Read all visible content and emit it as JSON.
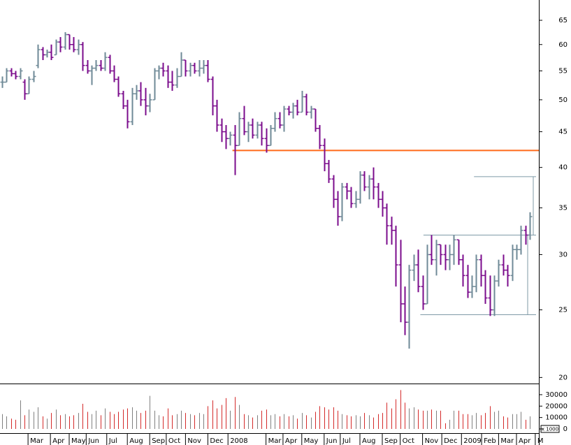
{
  "chart_data": {
    "type": "ohlc",
    "yscale": "log",
    "ylim": [
      19.65,
      69.5
    ],
    "yticks": [
      20,
      25,
      30,
      35,
      40,
      45,
      50,
      55,
      60,
      65
    ],
    "up_color": "#6f8a97",
    "down_color": "#7b0c8c",
    "ohlc": [
      [
        53,
        54,
        52,
        53
      ],
      [
        53,
        55.5,
        53,
        55
      ],
      [
        55,
        55.5,
        54,
        54.5
      ],
      [
        54.5,
        55,
        53.5,
        54
      ],
      [
        54,
        55.5,
        53.5,
        55
      ],
      [
        53,
        53.5,
        50,
        51
      ],
      [
        51,
        54,
        51,
        53.5
      ],
      [
        53.5,
        55,
        53,
        54
      ],
      [
        56,
        60,
        55.5,
        59
      ],
      [
        59,
        59.5,
        57,
        58
      ],
      [
        58,
        59,
        57.5,
        58.5
      ],
      [
        58.5,
        60,
        57,
        57.5
      ],
      [
        58,
        61,
        58,
        60.5
      ],
      [
        60.5,
        61.5,
        58.5,
        59.5
      ],
      [
        59.5,
        62.5,
        59,
        62
      ],
      [
        62,
        62,
        59,
        60
      ],
      [
        60,
        61.5,
        58.5,
        59
      ],
      [
        59,
        61,
        58,
        60
      ],
      [
        60,
        60.5,
        55,
        56
      ],
      [
        56,
        57,
        54.5,
        55
      ],
      [
        55,
        56,
        52.5,
        55.5
      ],
      [
        55.5,
        57,
        55,
        56
      ],
      [
        56,
        57,
        55,
        55.5
      ],
      [
        55.5,
        58.5,
        55,
        57.5
      ],
      [
        57.5,
        58,
        54.5,
        55
      ],
      [
        55,
        56,
        53,
        53.5
      ],
      [
        53.5,
        54,
        50.5,
        51
      ],
      [
        51,
        51.5,
        48.5,
        49
      ],
      [
        49,
        50,
        45.5,
        46.5
      ],
      [
        46.5,
        52,
        46,
        51
      ],
      [
        51,
        52.5,
        50,
        51.5
      ],
      [
        51.5,
        53,
        49,
        50
      ],
      [
        50,
        52,
        47.5,
        49
      ],
      [
        49,
        51,
        48,
        50
      ],
      [
        50,
        55.5,
        50,
        55
      ],
      [
        55,
        56,
        53.5,
        55.5
      ],
      [
        55.5,
        56.5,
        54,
        55
      ],
      [
        55,
        56,
        52,
        53
      ],
      [
        53,
        55,
        51.5,
        52.5
      ],
      [
        52.5,
        55.5,
        52,
        54
      ],
      [
        54,
        58.5,
        54,
        57
      ],
      [
        57,
        57,
        54,
        55
      ],
      [
        55,
        56.5,
        54,
        56
      ],
      [
        56,
        56.5,
        54.5,
        55
      ],
      [
        55,
        57,
        54,
        55.5
      ],
      [
        55.5,
        57,
        54.5,
        56
      ],
      [
        56,
        57,
        53,
        53.5
      ],
      [
        53.5,
        54,
        47.5,
        49
      ],
      [
        49,
        50,
        45,
        46
      ],
      [
        46,
        47,
        43.5,
        45
      ],
      [
        45,
        46,
        42.5,
        44
      ],
      [
        44,
        45,
        43,
        44.5
      ],
      [
        44.5,
        46,
        39,
        43
      ],
      [
        43,
        48,
        43,
        47
      ],
      [
        47,
        49,
        44.5,
        45
      ],
      [
        45,
        46.5,
        43.5,
        46
      ],
      [
        46,
        47,
        44,
        44.5
      ],
      [
        44.5,
        46.5,
        44,
        46
      ],
      [
        46,
        46.5,
        43,
        44
      ],
      [
        44,
        45.5,
        42,
        43
      ],
      [
        43,
        46,
        43,
        45.5
      ],
      [
        45.5,
        48,
        45,
        47
      ],
      [
        47,
        48,
        45.5,
        46
      ],
      [
        46,
        49,
        45,
        48.5
      ],
      [
        48.5,
        49,
        47.5,
        48
      ],
      [
        48,
        49.5,
        47,
        49
      ],
      [
        49,
        50,
        47.5,
        48
      ],
      [
        48,
        51.5,
        48,
        50.5
      ],
      [
        50.5,
        51,
        47.5,
        48
      ],
      [
        48,
        49,
        47,
        48.5
      ],
      [
        48.5,
        48.5,
        45,
        45.5
      ],
      [
        45.5,
        46,
        42.5,
        43
      ],
      [
        43,
        44,
        39.5,
        40.5
      ],
      [
        40.5,
        41,
        38,
        38.5
      ],
      [
        38.5,
        39,
        35,
        36
      ],
      [
        36,
        37,
        33,
        34
      ],
      [
        34,
        38,
        33.5,
        37.5
      ],
      [
        37.5,
        38,
        36,
        37
      ],
      [
        37,
        37.5,
        35,
        35.5
      ],
      [
        35.5,
        37,
        35,
        36
      ],
      [
        36,
        39.5,
        35.5,
        39
      ],
      [
        39,
        39.5,
        37,
        37.5
      ],
      [
        37.5,
        39,
        36,
        38.5
      ],
      [
        38.5,
        40,
        36,
        37.5
      ],
      [
        37.5,
        38,
        35,
        36
      ],
      [
        36,
        37,
        34,
        35
      ],
      [
        35,
        35.5,
        31,
        33
      ],
      [
        33,
        34,
        31,
        32.5
      ],
      [
        32.5,
        33,
        27,
        29
      ],
      [
        29,
        31.5,
        24,
        25.5
      ],
      [
        25.5,
        27,
        23,
        24
      ],
      [
        24,
        29,
        22,
        28.5
      ],
      [
        28.5,
        30,
        27.5,
        29
      ],
      [
        29,
        30.5,
        26.5,
        27
      ],
      [
        27,
        28,
        25,
        25.5
      ],
      [
        25.5,
        31,
        25.5,
        30
      ],
      [
        30,
        32,
        29,
        29.5
      ],
      [
        29.5,
        31.5,
        28,
        31
      ],
      [
        31,
        31,
        29,
        30
      ],
      [
        30,
        31,
        28.5,
        29.5
      ],
      [
        29.5,
        31,
        28.5,
        30
      ],
      [
        30,
        32,
        29,
        31.5
      ],
      [
        31.5,
        31.5,
        29,
        29.5
      ],
      [
        29.5,
        30,
        27,
        28
      ],
      [
        28,
        29,
        26,
        26.5
      ],
      [
        26.5,
        28,
        26,
        27
      ],
      [
        27,
        30,
        26.5,
        29.5
      ],
      [
        29.5,
        30,
        27,
        28
      ],
      [
        28,
        28.5,
        25.5,
        26
      ],
      [
        26,
        28,
        24.5,
        25
      ],
      [
        25,
        28,
        24.5,
        27.5
      ],
      [
        27.5,
        29.5,
        27,
        29
      ],
      [
        29,
        30,
        28,
        28.5
      ],
      [
        28.5,
        29,
        27,
        28
      ],
      [
        28,
        31,
        27.5,
        30.5
      ],
      [
        30.5,
        31,
        29.5,
        30.5
      ],
      [
        30.5,
        33,
        30,
        32.5
      ],
      [
        32.5,
        33,
        31,
        32
      ],
      [
        32,
        34.5,
        31.5,
        34
      ]
    ],
    "volume": [
      13000,
      11000,
      9000,
      8000,
      25000,
      12000,
      17000,
      15000,
      19000,
      11000,
      9000,
      14000,
      17000,
      12000,
      13000,
      11000,
      12000,
      14000,
      22000,
      15000,
      13000,
      16000,
      12000,
      18000,
      15000,
      13000,
      15000,
      17000,
      18000,
      19000,
      16000,
      14000,
      16000,
      29000,
      16000,
      12000,
      11000,
      18000,
      12000,
      13000,
      16000,
      14000,
      13000,
      12000,
      14000,
      13000,
      20000,
      25000,
      18000,
      21000,
      27000,
      16000,
      28000,
      21000,
      13000,
      12000,
      10000,
      12000,
      16000,
      17000,
      12000,
      13000,
      11000,
      13000,
      11000,
      12000,
      9000,
      14000,
      12000,
      10000,
      15000,
      20000,
      19000,
      17000,
      19000,
      16000,
      13000,
      12000,
      11000,
      12000,
      11000,
      14000,
      12000,
      10000,
      13000,
      14000,
      23000,
      18000,
      26000,
      34000,
      23000,
      18000,
      19000,
      17000,
      16000,
      16000,
      17000,
      16000,
      16000,
      5000,
      8000,
      16000,
      16000,
      13000,
      13000,
      12000,
      14000,
      12000,
      14000,
      20000,
      15000,
      16000,
      11000,
      10000,
      13000,
      13000,
      15000,
      8000,
      11000
    ],
    "vlim": [
      0,
      35000
    ],
    "vticks": [
      0,
      10000,
      20000,
      30000
    ],
    "volume_unit": "x 1000",
    "volume_up_color": "#808080",
    "volume_down_color": "#d42a2a",
    "xticks": [
      {
        "value": 5.8,
        "label": "Mar"
      },
      {
        "value": 10.8,
        "label": "Apr"
      },
      {
        "value": 15,
        "label": "May"
      },
      {
        "value": 18.8,
        "label": "Jun"
      },
      {
        "value": 23.4,
        "label": "Jul"
      },
      {
        "value": 28,
        "label": "Aug"
      },
      {
        "value": 33,
        "label": "Sep"
      },
      {
        "value": 36.7,
        "label": "Oct"
      },
      {
        "value": 41,
        "label": "Nov"
      },
      {
        "value": 46,
        "label": "Dec"
      },
      {
        "value": 50.5,
        "label": "2008"
      },
      {
        "value": 59,
        "label": "Mar"
      },
      {
        "value": 62.8,
        "label": "Apr"
      },
      {
        "value": 67,
        "label": "May"
      },
      {
        "value": 72,
        "label": "Jun"
      },
      {
        "value": 75.6,
        "label": "Jul"
      },
      {
        "value": 80,
        "label": "Aug"
      },
      {
        "value": 85,
        "label": "Sep"
      },
      {
        "value": 89,
        "label": "Oct"
      },
      {
        "value": 94,
        "label": "Nov"
      },
      {
        "value": 98.3,
        "label": "Dec"
      },
      {
        "value": 102.7,
        "label": "2009"
      },
      {
        "value": 107.2,
        "label": "Feb"
      },
      {
        "value": 111,
        "label": "Mar"
      },
      {
        "value": 115,
        "label": "Apr"
      },
      {
        "value": 119.2,
        "label": "M"
      }
    ],
    "hlines": [
      {
        "value": 42.3,
        "start": 51.5,
        "color": "#ff6a1a"
      },
      {
        "value": 38.8,
        "start": 105.5,
        "color": "#7f9aa6"
      },
      {
        "value": 32,
        "start": 94.2,
        "color": "#7f9aa6"
      },
      {
        "value": 24.6,
        "start": 93.5,
        "color": "#7f9aa6"
      }
    ]
  }
}
